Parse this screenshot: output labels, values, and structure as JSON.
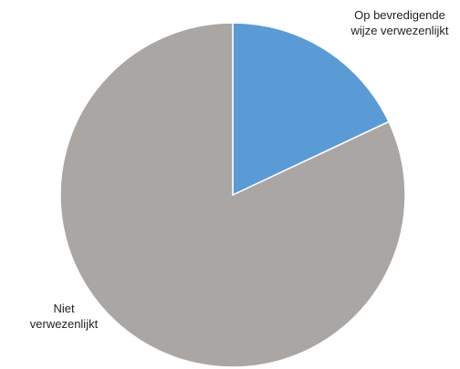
{
  "chart_data": {
    "type": "pie",
    "categories": [
      "Op bevredigende wijze verwezenlijkt",
      "Niet verwezenlijkt"
    ],
    "values": [
      18,
      82
    ],
    "colors": [
      "#5b9bd5",
      "#aaa6a4"
    ]
  }
}
